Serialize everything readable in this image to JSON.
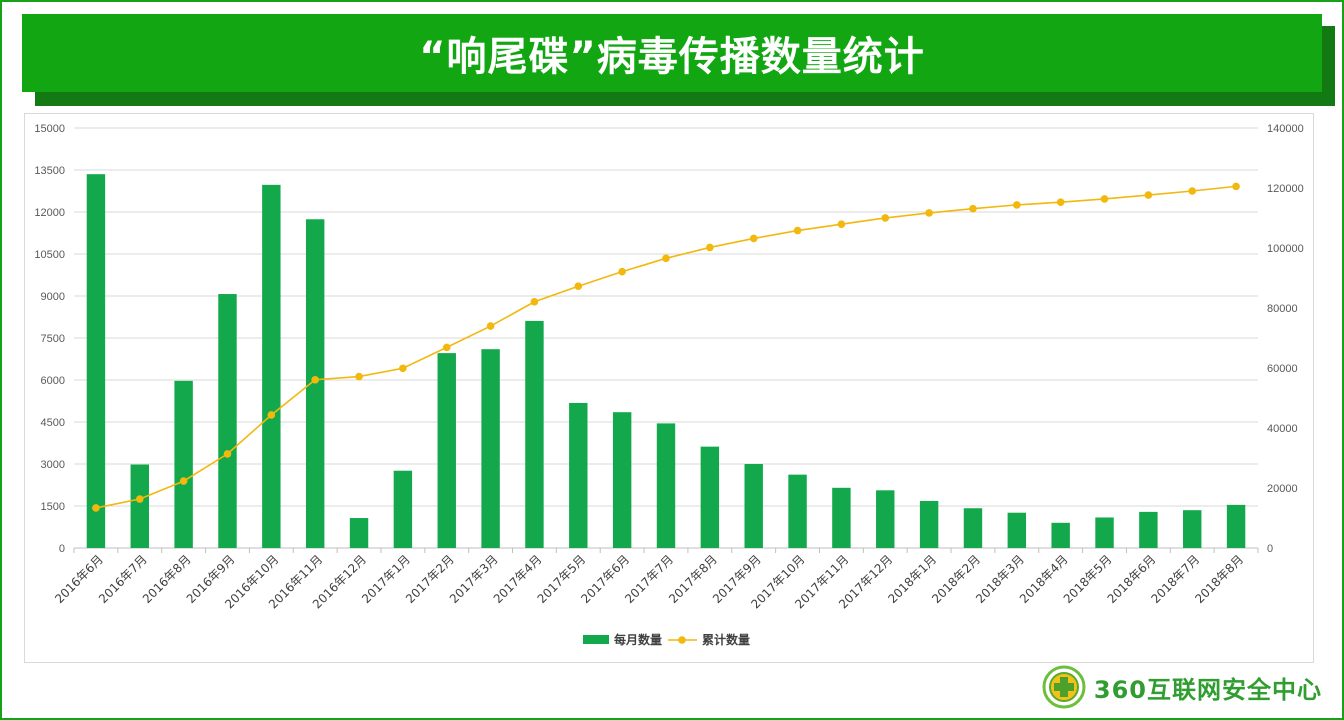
{
  "title": "“响尾碟”病毒传播数量统计",
  "brand": {
    "logo_text": "360互联网安全中心"
  },
  "colors": {
    "banner": "#12a612",
    "bar": "#12a84b",
    "line": "#f2b80d"
  },
  "chart_data": {
    "type": "bar",
    "categories": [
      "2016年6月",
      "2016年7月",
      "2016年8月",
      "2016年9月",
      "2016年10月",
      "2016年11月",
      "2016年12月",
      "2017年1月",
      "2017年2月",
      "2017年3月",
      "2017年4月",
      "2017年5月",
      "2017年6月",
      "2017年7月",
      "2017年8月",
      "2017年9月",
      "2017年10月",
      "2017年11月",
      "2017年12月",
      "2018年1月",
      "2018年2月",
      "2018年3月",
      "2018年4月",
      "2018年5月",
      "2018年6月",
      "2018年7月",
      "2018年8月"
    ],
    "series": [
      {
        "name": "每月数量",
        "type": "bar",
        "axis": "left",
        "values": [
          13350,
          2980,
          5970,
          9070,
          12970,
          11740,
          1070,
          2760,
          6960,
          7100,
          8110,
          5180,
          4850,
          4450,
          3620,
          3000,
          2620,
          2150,
          2060,
          1680,
          1420,
          1260,
          900,
          1090,
          1290,
          1350,
          1540
        ]
      },
      {
        "name": "累计数量",
        "type": "line",
        "axis": "right",
        "values": [
          13350,
          16330,
          22300,
          31370,
          44340,
          56080,
          57150,
          59910,
          66870,
          73970,
          82080,
          87260,
          92110,
          96560,
          100180,
          103180,
          105800,
          107950,
          110010,
          111690,
          113110,
          114370,
          115270,
          116360,
          117650,
          119000,
          120540
        ]
      }
    ],
    "y_left": {
      "min": 0,
      "max": 15000,
      "ticks": [
        0,
        1500,
        3000,
        4500,
        6000,
        7500,
        9000,
        10500,
        12000,
        13500,
        15000
      ]
    },
    "y_right": {
      "min": 0,
      "max": 140000,
      "ticks": [
        0,
        20000,
        40000,
        60000,
        80000,
        100000,
        120000,
        140000
      ]
    },
    "grid": true,
    "legend": "bottom-center"
  }
}
